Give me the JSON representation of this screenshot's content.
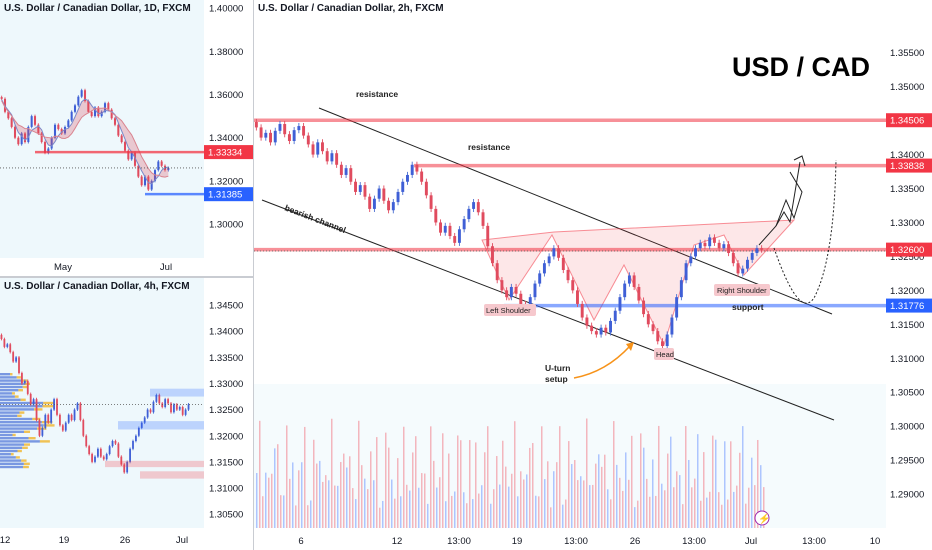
{
  "chart_data": [
    {
      "id": "daily",
      "type": "candlestick",
      "title": "U.S. Dollar / Canadian Dollar, 1D, FXCM",
      "ylim": [
        1.288,
        1.401
      ],
      "y_ticks": [
        "1.40000",
        "1.38000",
        "1.36000",
        "1.34000",
        "1.32000",
        "1.30000"
      ],
      "x_ticks": [
        "May",
        "Jul"
      ],
      "levels": [
        {
          "label": "1.33334",
          "value": 1.33334,
          "color": "#f23645"
        },
        {
          "label": "1.31385",
          "value": 1.31385,
          "color": "#2962ff"
        }
      ],
      "current_price": 1.326,
      "closes": [
        1.358,
        1.352,
        1.349,
        1.345,
        1.34,
        1.337,
        1.342,
        1.338,
        1.345,
        1.35,
        1.346,
        1.342,
        1.338,
        1.333,
        1.335,
        1.34,
        1.346,
        1.344,
        1.342,
        1.345,
        1.348,
        1.352,
        1.355,
        1.359,
        1.362,
        1.357,
        1.352,
        1.35,
        1.354,
        1.35,
        1.352,
        1.356,
        1.353,
        1.349,
        1.346,
        1.341,
        1.338,
        1.334,
        1.33,
        1.333,
        1.327,
        1.322,
        1.318,
        1.322,
        1.316,
        1.32,
        1.325,
        1.329,
        1.327,
        1.325,
        1.326
      ]
    },
    {
      "id": "h4",
      "type": "candlestick",
      "title": "U.S. Dollar / Canadian Dollar, 4h, FXCM",
      "ylim": [
        1.3035,
        1.3475
      ],
      "y_ticks": [
        "1.34500",
        "1.34000",
        "1.33500",
        "1.33000",
        "1.32500",
        "1.32000",
        "1.31500",
        "1.31000",
        "1.30500"
      ],
      "x_ticks": [
        "12",
        "19",
        "26",
        "Jul"
      ],
      "current_price": 1.326,
      "closes": [
        1.3385,
        1.337,
        1.3375,
        1.336,
        1.3342,
        1.335,
        1.332,
        1.33,
        1.3305,
        1.328,
        1.326,
        1.327,
        1.323,
        1.32,
        1.3215,
        1.324,
        1.3225,
        1.325,
        1.327,
        1.324,
        1.322,
        1.321,
        1.3225,
        1.324,
        1.323,
        1.325,
        1.3262,
        1.323,
        1.32,
        1.318,
        1.3165,
        1.315,
        1.316,
        1.3175,
        1.316,
        1.3155,
        1.3165,
        1.318,
        1.319,
        1.3185,
        1.316,
        1.3145,
        1.313,
        1.315,
        1.3175,
        1.319,
        1.32,
        1.3215,
        1.3225,
        1.3235,
        1.325,
        1.3245,
        1.3265,
        1.3278,
        1.3262,
        1.3255,
        1.327,
        1.3262,
        1.3245,
        1.326,
        1.325,
        1.3255,
        1.324,
        1.325,
        1.326
      ]
    },
    {
      "id": "main",
      "type": "candlestick",
      "title": "U.S. Dollar / Canadian Dollar, 2h, FXCM",
      "heading": "USD / CAD",
      "ylim": [
        1.285,
        1.361
      ],
      "y_ticks": [
        "1.35500",
        "1.35000",
        "1.34000",
        "1.33500",
        "1.33000",
        "1.32500",
        "1.32000",
        "1.31500",
        "1.31000",
        "1.30500",
        "1.30000",
        "1.29500",
        "1.29000"
      ],
      "x_ticks": [
        "6",
        "12",
        "13:00",
        "19",
        "13:00",
        "26",
        "13:00",
        "Jul",
        "13:00",
        "10"
      ],
      "levels": [
        {
          "label": "1.34506",
          "value": 1.34506,
          "color": "#f23645"
        },
        {
          "label": "1.33838",
          "value": 1.33838,
          "color": "#f23645"
        },
        {
          "label": "1.32600",
          "value": 1.326,
          "color": "#f23645"
        },
        {
          "label": "1.31776",
          "value": 1.31776,
          "color": "#2962ff"
        }
      ],
      "annotations": [
        "resistance",
        "resistance",
        "bearish channel",
        "Left Shoulder",
        "Head",
        "Right Shoulder",
        "support",
        "U-turn",
        "setup"
      ],
      "closes": [
        1.344,
        1.3425,
        1.3432,
        1.3418,
        1.3435,
        1.3445,
        1.343,
        1.342,
        1.3436,
        1.3442,
        1.3428,
        1.3415,
        1.34,
        1.3418,
        1.3405,
        1.339,
        1.3402,
        1.3385,
        1.337,
        1.338,
        1.336,
        1.3345,
        1.3355,
        1.3338,
        1.332,
        1.3335,
        1.335,
        1.3332,
        1.3318,
        1.333,
        1.3345,
        1.336,
        1.337,
        1.3385,
        1.3375,
        1.336,
        1.334,
        1.332,
        1.33,
        1.3285,
        1.3295,
        1.328,
        1.327,
        1.329,
        1.3305,
        1.332,
        1.333,
        1.3315,
        1.3295,
        1.3265,
        1.324,
        1.3215,
        1.32,
        1.319,
        1.3205,
        1.3195,
        1.318,
        1.3175,
        1.319,
        1.321,
        1.3225,
        1.324,
        1.325,
        1.3262,
        1.3248,
        1.323,
        1.3215,
        1.32,
        1.318,
        1.316,
        1.3148,
        1.314,
        1.3135,
        1.3145,
        1.3138,
        1.3155,
        1.317,
        1.319,
        1.321,
        1.3222,
        1.3205,
        1.3185,
        1.3165,
        1.315,
        1.314,
        1.3125,
        1.3118,
        1.3135,
        1.316,
        1.319,
        1.3215,
        1.324,
        1.325,
        1.3262,
        1.327,
        1.3265,
        1.3278,
        1.327,
        1.3262,
        1.3268,
        1.3255,
        1.324,
        1.3225,
        1.3232,
        1.3245,
        1.3255,
        1.3262,
        1.326
      ]
    }
  ]
}
